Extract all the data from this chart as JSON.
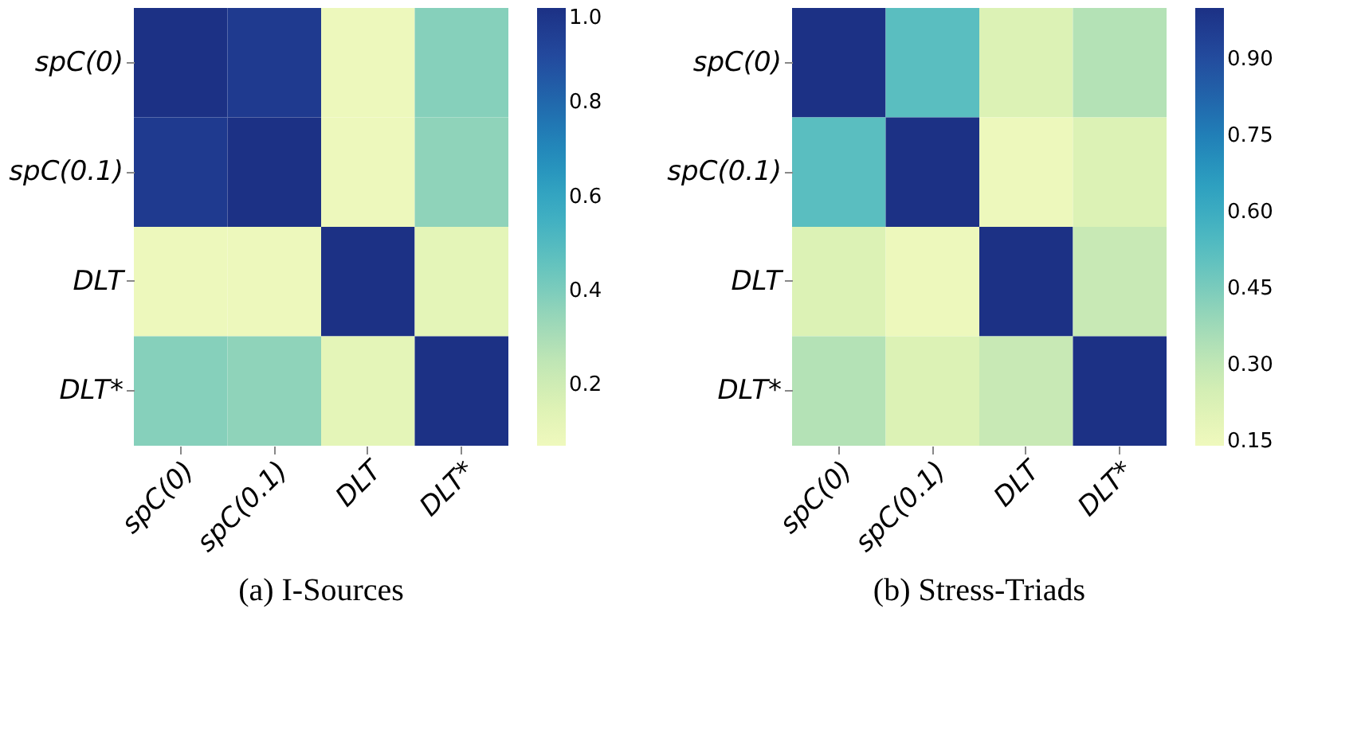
{
  "chart_data": [
    {
      "type": "heatmap",
      "title": "(a) I-Sources",
      "categories": [
        "spC(0)",
        "spC(0.1)",
        "DLT",
        "DLT*"
      ],
      "y_categories": [
        "spC(0)",
        "spC(0.1)",
        "DLT",
        "DLT*"
      ],
      "cells": [
        [
          1.0,
          0.96,
          0.08,
          0.38
        ],
        [
          0.96,
          1.0,
          0.08,
          0.36
        ],
        [
          0.08,
          0.08,
          1.0,
          0.12
        ],
        [
          0.38,
          0.36,
          0.12,
          1.0
        ]
      ],
      "clim": [
        0.07,
        1.0
      ],
      "cticks": [
        0.2,
        0.4,
        0.6,
        0.8,
        {
          "value": 1.0,
          "label": "1.0"
        }
      ]
    },
    {
      "type": "heatmap",
      "title": "(b) Stress-Triads",
      "categories": [
        "spC(0)",
        "spC(0.1)",
        "DLT",
        "DLT*"
      ],
      "y_categories": [
        "spC(0)",
        "spC(0.1)",
        "DLT",
        "DLT*"
      ],
      "cells": [
        [
          1.0,
          0.52,
          0.22,
          0.33
        ],
        [
          0.52,
          1.0,
          0.15,
          0.22
        ],
        [
          0.22,
          0.15,
          1.0,
          0.28
        ],
        [
          0.33,
          0.22,
          0.28,
          1.0
        ]
      ],
      "clim": [
        0.14,
        1.0
      ],
      "cticks": [
        {
          "value": 0.15,
          "label": "0.15"
        },
        {
          "value": 0.3,
          "label": "0.30"
        },
        {
          "value": 0.45,
          "label": "0.45"
        },
        {
          "value": 0.6,
          "label": "0.60"
        },
        {
          "value": 0.75,
          "label": "0.75"
        },
        {
          "value": 0.9,
          "label": "0.90"
        }
      ]
    }
  ]
}
